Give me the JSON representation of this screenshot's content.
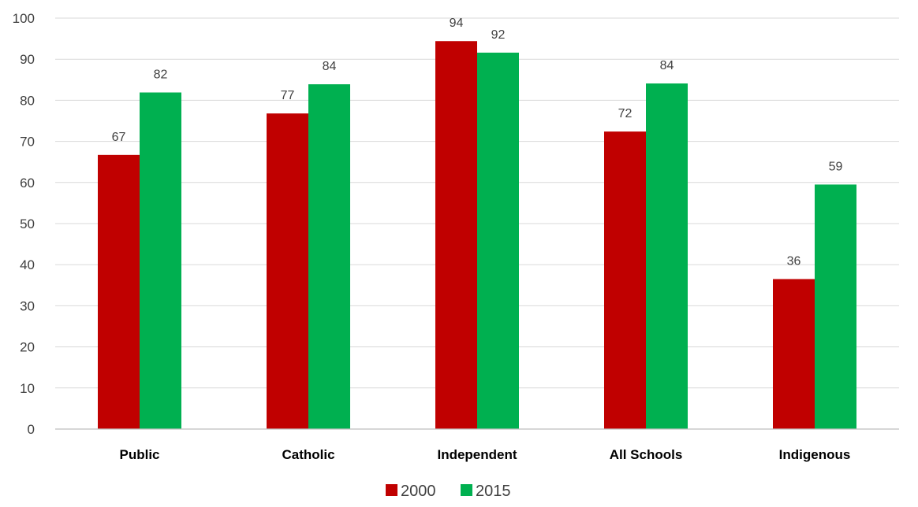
{
  "chart_data": {
    "type": "bar",
    "categories": [
      "Public",
      "Catholic",
      "Independent",
      "All Schools",
      "Indigenous"
    ],
    "series": [
      {
        "name": "2000",
        "color": "#c00000",
        "values": [
          66.7,
          76.8,
          94.4,
          72.4,
          36.5
        ],
        "labels": [
          "67",
          "77",
          "94",
          "72",
          "36"
        ]
      },
      {
        "name": "2015",
        "color": "#00b050",
        "values": [
          81.9,
          83.9,
          91.6,
          84.1,
          59.5
        ],
        "labels": [
          "82",
          "84",
          "92",
          "84",
          "59"
        ]
      }
    ],
    "yticks": [
      "0",
      "10",
      "20",
      "30",
      "40",
      "50",
      "60",
      "70",
      "80",
      "90",
      "100"
    ],
    "ylim": [
      0,
      100
    ],
    "grid": true,
    "legend_position": "bottom"
  }
}
